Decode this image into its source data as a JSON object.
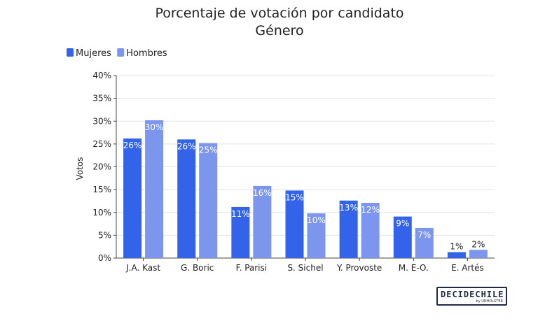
{
  "chart_data": {
    "type": "bar",
    "title": "Porcentaje de votación por candidato",
    "subtitle": "Género",
    "xlabel": "",
    "ylabel": "Votos",
    "ylim": [
      0,
      40
    ],
    "yticks": [
      "0%",
      "5%",
      "10%",
      "15%",
      "20%",
      "25%",
      "30%",
      "35%",
      "40%"
    ],
    "grid": true,
    "legend_position": "top-left",
    "categories": [
      "J.A. Kast",
      "G. Boric",
      "F. Parisi",
      "S. Sichel",
      "Y. Provoste",
      "M. E-O.",
      "E. Artés"
    ],
    "series": [
      {
        "name": "Mujeres",
        "color": "#3363e8",
        "values": [
          26.2,
          26.0,
          11.2,
          14.8,
          12.6,
          9.1,
          1.3
        ],
        "labels": [
          "26%",
          "26%",
          "11%",
          "15%",
          "13%",
          "9%",
          "1%"
        ]
      },
      {
        "name": "Hombres",
        "color": "#7b96ec",
        "values": [
          30.2,
          25.2,
          15.8,
          9.8,
          12.1,
          6.6,
          1.8
        ],
        "labels": [
          "30%",
          "25%",
          "16%",
          "10%",
          "12%",
          "7%",
          "2%"
        ]
      }
    ]
  },
  "branding": {
    "logo_text": "DECIDECHILE",
    "logo_subtext": "by UNHOLSTER"
  }
}
